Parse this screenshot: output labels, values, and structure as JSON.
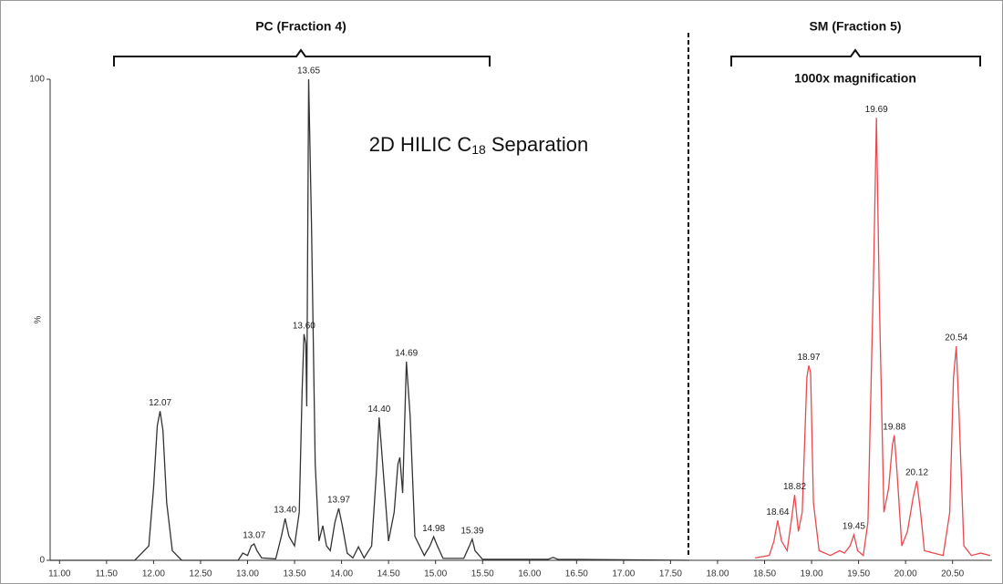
{
  "chart_data": {
    "type": "line",
    "annotations": {
      "left": "PC (Fraction 4)",
      "right": "SM (Fraction 5)",
      "right_note": "1000x magnification",
      "center": [
        "2D HILIC C",
        "18",
        "Separation"
      ]
    },
    "ylabel": "%",
    "xlim": [
      10.9,
      20.92
    ],
    "ylim": [
      0,
      100
    ],
    "yticks": [
      0,
      100
    ],
    "xticks": [
      {
        "value": 11,
        "label": "11.00"
      },
      {
        "value": 11.5,
        "label": "11.50"
      },
      {
        "value": 12,
        "label": "12.00"
      },
      {
        "value": 12.5,
        "label": "12.50"
      },
      {
        "value": 13,
        "label": "13.00"
      },
      {
        "value": 13.5,
        "label": "13.50"
      },
      {
        "value": 14,
        "label": "14.00"
      },
      {
        "value": 14.5,
        "label": "14.50"
      },
      {
        "value": 15,
        "label": "15.00"
      },
      {
        "value": 15.5,
        "label": "15.50"
      },
      {
        "value": 16,
        "label": "16.00"
      },
      {
        "value": 16.5,
        "label": "16.50"
      },
      {
        "value": 17,
        "label": "17.00"
      },
      {
        "value": 17.5,
        "label": "17.50"
      },
      {
        "value": 18,
        "label": "18.00"
      },
      {
        "value": 18.5,
        "label": "18.50"
      },
      {
        "value": 19,
        "label": "19.00"
      },
      {
        "value": 19.5,
        "label": "19.50"
      },
      {
        "value": 20,
        "label": "20.00"
      },
      {
        "value": 20.5,
        "label": "20.50"
      }
    ],
    "series": [
      {
        "color": "#333333",
        "x": [
          10.9,
          11.8,
          11.95,
          12.0,
          12.04,
          12.07,
          12.1,
          12.14,
          12.2,
          12.3,
          12.9,
          12.95,
          13.0,
          13.04,
          13.07,
          13.1,
          13.15,
          13.3,
          13.36,
          13.4,
          13.44,
          13.5,
          13.55,
          13.58,
          13.6,
          13.62,
          13.63,
          13.65,
          13.68,
          13.72,
          13.76,
          13.8,
          13.84,
          13.88,
          13.93,
          13.97,
          14.01,
          14.06,
          14.12,
          14.18,
          14.24,
          14.32,
          14.37,
          14.4,
          14.43,
          14.5,
          14.56,
          14.6,
          14.62,
          14.65,
          14.69,
          14.73,
          14.78,
          14.88,
          14.94,
          14.98,
          15.02,
          15.08,
          15.3,
          15.36,
          15.39,
          15.42,
          15.5,
          16.2,
          16.25,
          16.3,
          17.7
        ],
        "values": [
          0,
          0,
          3,
          15,
          28,
          31,
          27,
          12,
          2,
          0,
          0,
          1.5,
          1,
          3,
          3.4,
          2,
          0.5,
          0.3,
          5,
          8.7,
          5,
          3,
          10,
          35,
          47,
          45,
          32,
          100,
          70,
          20,
          4,
          7.2,
          3,
          2,
          8,
          10.8,
          7,
          1.5,
          0.5,
          2.8,
          0.5,
          3,
          18,
          29.7,
          22,
          4,
          10,
          20,
          21.4,
          14,
          41.3,
          30,
          5,
          1,
          3,
          4.9,
          3,
          0.4,
          0.4,
          3,
          4.4,
          2,
          0.2,
          0.2,
          0.6,
          0.2,
          0
        ],
        "peaks": [
          12.07,
          13.07,
          {
            "value": 13.4,
            "label": "13.40"
          },
          {
            "value": 13.6,
            "label": "13.60"
          },
          13.65,
          13.97,
          {
            "value": 14.4,
            "label": "14.40"
          },
          14.69,
          14.98,
          15.39
        ]
      },
      {
        "color": "#e8494f",
        "x": [
          18.4,
          18.55,
          18.6,
          18.64,
          18.68,
          18.74,
          18.79,
          18.82,
          18.86,
          18.9,
          18.95,
          18.97,
          18.99,
          19.02,
          19.08,
          19.2,
          19.3,
          19.35,
          19.41,
          19.45,
          19.49,
          19.55,
          19.6,
          19.66,
          19.69,
          19.72,
          19.77,
          19.82,
          19.86,
          19.88,
          19.91,
          19.96,
          20.02,
          20.08,
          20.12,
          20.16,
          20.2,
          20.3,
          20.4,
          20.47,
          20.51,
          20.54,
          20.57,
          20.62,
          20.7,
          20.8,
          20.9
        ],
        "values": [
          0.5,
          1,
          4,
          8.3,
          4,
          2,
          9,
          13.6,
          6,
          10,
          38,
          40.5,
          39,
          12,
          2,
          1,
          2,
          1.5,
          3,
          5.3,
          2,
          1,
          8,
          60,
          92,
          55,
          10,
          15,
          24,
          26,
          18,
          3,
          6,
          13,
          16.5,
          10,
          2,
          1.5,
          1,
          10,
          38,
          44.5,
          30,
          3,
          1,
          1.5,
          1
        ],
        "peaks": [
          18.64,
          18.82,
          18.97,
          19.45,
          19.69,
          19.88,
          20.12,
          20.54
        ]
      }
    ]
  }
}
